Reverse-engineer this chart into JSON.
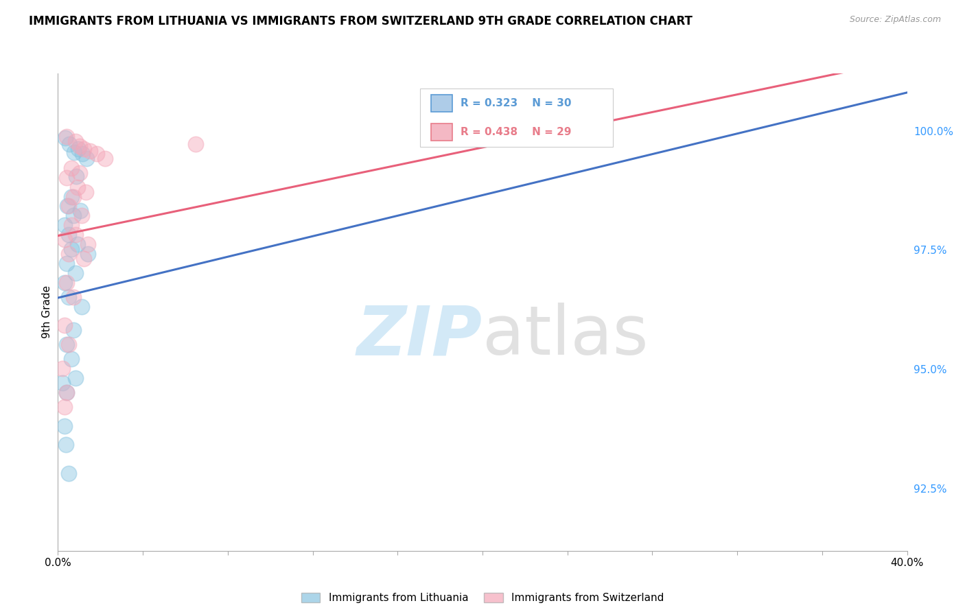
{
  "title": "IMMIGRANTS FROM LITHUANIA VS IMMIGRANTS FROM SWITZERLAND 9TH GRADE CORRELATION CHART",
  "source_text": "Source: ZipAtlas.com",
  "ylabel": "9th Grade",
  "y_ticks": [
    92.5,
    95.0,
    97.5,
    100.0
  ],
  "y_tick_labels": [
    "92.5%",
    "95.0%",
    "97.5%",
    "100.0%"
  ],
  "ylim": [
    91.2,
    101.2
  ],
  "xlim": [
    0.0,
    40.0
  ],
  "legend_entries": [
    "Immigrants from Lithuania",
    "Immigrants from Switzerland"
  ],
  "legend_R_N": [
    {
      "R": 0.323,
      "N": 30,
      "color_text": "#5b9bd5",
      "color_patch_face": "#aecce8",
      "color_patch_edge": "#5b9bd5"
    },
    {
      "R": 0.438,
      "N": 29,
      "color_text": "#e87c8a",
      "color_patch_face": "#f4b8c4",
      "color_patch_edge": "#e87c8a"
    }
  ],
  "blue_color": "#89c4e0",
  "pink_color": "#f4a7b9",
  "blue_line_color": "#4472c4",
  "pink_line_color": "#e8607a",
  "blue_scatter": [
    [
      0.35,
      99.85
    ],
    [
      0.55,
      99.72
    ],
    [
      0.75,
      99.55
    ],
    [
      0.95,
      99.62
    ],
    [
      1.15,
      99.52
    ],
    [
      1.35,
      99.42
    ],
    [
      0.85,
      99.05
    ],
    [
      0.65,
      98.62
    ],
    [
      0.45,
      98.42
    ],
    [
      1.05,
      98.32
    ],
    [
      0.72,
      98.22
    ],
    [
      0.32,
      98.02
    ],
    [
      0.52,
      97.82
    ],
    [
      0.92,
      97.62
    ],
    [
      0.62,
      97.52
    ],
    [
      0.42,
      97.22
    ],
    [
      0.82,
      97.02
    ],
    [
      0.32,
      96.82
    ],
    [
      1.42,
      97.42
    ],
    [
      0.52,
      96.52
    ],
    [
      1.12,
      96.32
    ],
    [
      0.72,
      95.82
    ],
    [
      0.42,
      95.52
    ],
    [
      0.62,
      95.22
    ],
    [
      0.82,
      94.82
    ],
    [
      0.42,
      94.52
    ],
    [
      0.32,
      93.82
    ],
    [
      0.22,
      94.72
    ],
    [
      0.52,
      92.82
    ],
    [
      0.38,
      93.42
    ]
  ],
  "pink_scatter": [
    [
      0.42,
      99.88
    ],
    [
      0.82,
      99.78
    ],
    [
      1.02,
      99.68
    ],
    [
      1.22,
      99.62
    ],
    [
      1.52,
      99.58
    ],
    [
      1.82,
      99.52
    ],
    [
      2.22,
      99.42
    ],
    [
      0.62,
      99.22
    ],
    [
      1.02,
      99.12
    ],
    [
      0.42,
      99.02
    ],
    [
      0.92,
      98.82
    ],
    [
      1.32,
      98.72
    ],
    [
      0.72,
      98.62
    ],
    [
      0.52,
      98.42
    ],
    [
      1.12,
      98.22
    ],
    [
      0.62,
      98.02
    ],
    [
      0.82,
      97.82
    ],
    [
      0.32,
      97.72
    ],
    [
      1.42,
      97.62
    ],
    [
      6.5,
      99.72
    ],
    [
      0.52,
      97.42
    ],
    [
      1.22,
      97.32
    ],
    [
      0.42,
      96.82
    ],
    [
      0.72,
      96.52
    ],
    [
      0.32,
      95.92
    ],
    [
      0.52,
      95.52
    ],
    [
      0.22,
      95.02
    ],
    [
      0.42,
      94.52
    ],
    [
      0.32,
      94.22
    ]
  ],
  "blue_regline": [
    [
      0.0,
      96.5
    ],
    [
      40.0,
      100.8
    ]
  ],
  "pink_regline": [
    [
      0.0,
      97.8
    ],
    [
      40.0,
      101.5
    ]
  ]
}
